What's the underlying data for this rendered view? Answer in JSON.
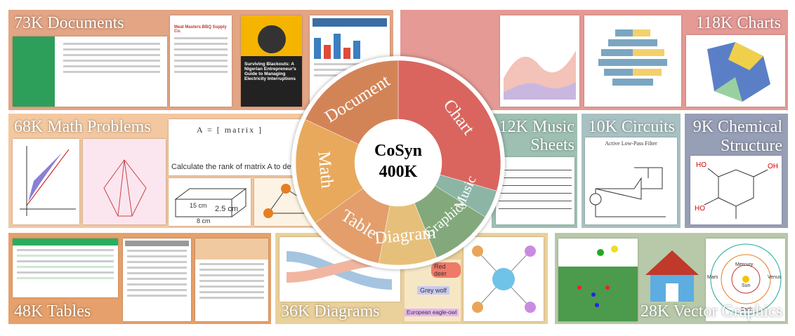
{
  "panels": [
    {
      "label": "73K Documents"
    },
    {
      "label": "118K Charts"
    },
    {
      "label": "68K Math Problems"
    },
    {
      "label": "12K Music Sheets"
    },
    {
      "label": "10K Circuits"
    },
    {
      "label": "9K Chemical Structure"
    },
    {
      "label": "48K Tables"
    },
    {
      "label": "36K Diagrams"
    },
    {
      "label": "28K Vector Graphics"
    }
  ],
  "donut": {
    "title": "CoSyn",
    "count": "400K",
    "segments": [
      "Chart",
      "Music",
      "Graphics",
      "Diagram",
      "Table",
      "Math",
      "Document"
    ]
  },
  "snippets": {
    "doc_receipt": "Meat Masters BBQ Supply Co.",
    "doc_book": "Surviving Blackouts: A Nigerian Entrepreneur's Guide to Managing Electricity Interruptions",
    "math_question": "Calculate the rank of matrix A to determine the nu",
    "math_dims": [
      "15 cm",
      "2.5 cm",
      "8 cm"
    ],
    "circuit_title": "Active Low-Pass Filter",
    "diagram_nodes": [
      "Red deer",
      "Grey wolf",
      "European eagle-owl"
    ],
    "planets": [
      "Mercury",
      "Sun",
      "Venus",
      "Earth",
      "Mars"
    ]
  }
}
